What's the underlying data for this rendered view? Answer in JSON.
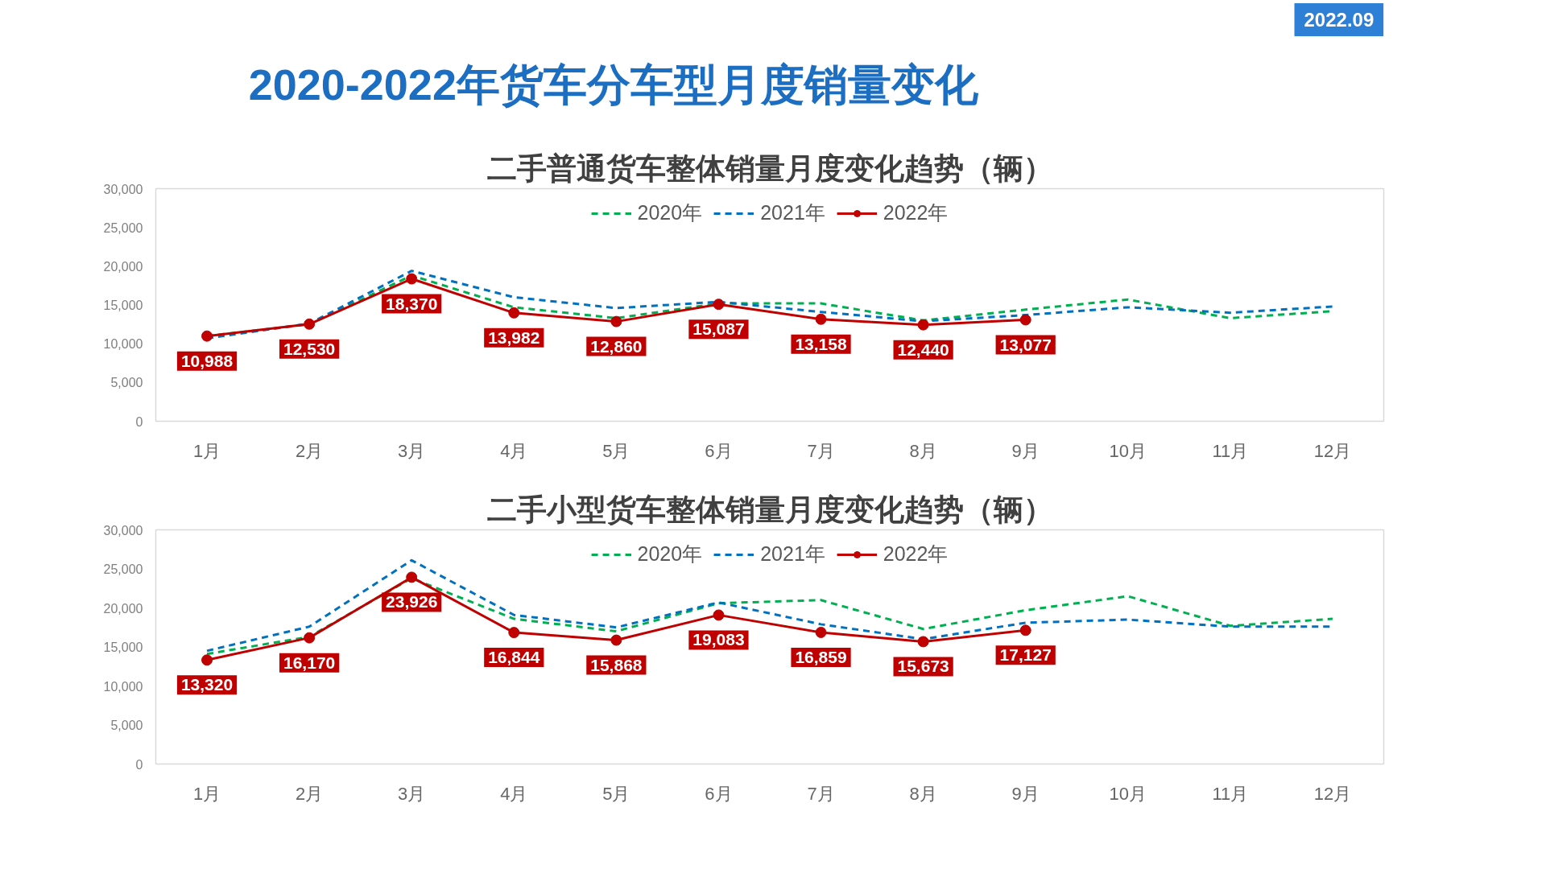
{
  "chart_data": [
    {
      "type": "line",
      "title": "二手普通货车整体销量月度变化趋势（辆）",
      "annotations": [
        "2020-2022年货车分车型月度销量变化",
        "2022.09"
      ],
      "categories": [
        "1月",
        "2月",
        "3月",
        "4月",
        "5月",
        "6月",
        "7月",
        "8月",
        "9月",
        "10月",
        "11月",
        "12月"
      ],
      "series": [
        {
          "name": "2020年",
          "color": "#00b050",
          "line_style": "dashed",
          "marker": "none",
          "values": [
            11000,
            12500,
            18800,
            14700,
            13300,
            15200,
            15200,
            13000,
            14400,
            15700,
            13300,
            14200
          ]
        },
        {
          "name": "2021年",
          "color": "#0070c0",
          "line_style": "dashed",
          "marker": "none",
          "values": [
            10700,
            12600,
            19400,
            16000,
            14600,
            15400,
            14100,
            12900,
            13700,
            14700,
            14000,
            14800
          ]
        },
        {
          "name": "2022年",
          "color": "#c00000",
          "line_style": "solid",
          "marker": "circle",
          "values": [
            10988,
            12530,
            18370,
            13982,
            12860,
            15087,
            13158,
            12440,
            13077,
            null,
            null,
            null
          ],
          "value_labels": [
            "10,988",
            "12,530",
            "18,370",
            "13,982",
            "12,860",
            "15,087",
            "13,158",
            "12,440",
            "13,077",
            null,
            null,
            null
          ]
        }
      ],
      "ylim": [
        0,
        30000
      ],
      "yticks": [
        {
          "value": 0,
          "label": "0"
        },
        {
          "value": 5000,
          "label": "5,000"
        },
        {
          "value": 10000,
          "label": "10,000"
        },
        {
          "value": 15000,
          "label": "15,000"
        },
        {
          "value": 20000,
          "label": "20,000"
        },
        {
          "value": 25000,
          "label": "25,000"
        },
        {
          "value": 30000,
          "label": "30,000"
        }
      ],
      "legend": "top"
    },
    {
      "type": "line",
      "title": "二手小型货车整体销量月度变化趋势（辆）",
      "categories": [
        "1月",
        "2月",
        "3月",
        "4月",
        "5月",
        "6月",
        "7月",
        "8月",
        "9月",
        "10月",
        "11月",
        "12月"
      ],
      "series": [
        {
          "name": "2020年",
          "color": "#00b050",
          "line_style": "dashed",
          "marker": "none",
          "values": [
            14100,
            16300,
            23800,
            18600,
            17000,
            20600,
            21000,
            17300,
            19700,
            21500,
            17700,
            18600
          ]
        },
        {
          "name": "2021年",
          "color": "#0070c0",
          "line_style": "dashed",
          "marker": "none",
          "values": [
            14500,
            17600,
            26100,
            19100,
            17500,
            20700,
            17900,
            16000,
            18100,
            18500,
            17600,
            17600
          ]
        },
        {
          "name": "2022年",
          "color": "#c00000",
          "line_style": "solid",
          "marker": "circle",
          "values": [
            13320,
            16170,
            23926,
            16844,
            15868,
            19083,
            16859,
            15673,
            17127,
            null,
            null,
            null
          ],
          "value_labels": [
            "13,320",
            "16,170",
            "23,926",
            "16,844",
            "15,868",
            "19,083",
            "16,859",
            "15,673",
            "17,127",
            null,
            null,
            null
          ]
        }
      ],
      "ylim": [
        0,
        30000
      ],
      "yticks": [
        {
          "value": 0,
          "label": "0"
        },
        {
          "value": 5000,
          "label": "5,000"
        },
        {
          "value": 10000,
          "label": "10,000"
        },
        {
          "value": 15000,
          "label": "15,000"
        },
        {
          "value": 20000,
          "label": "20,000"
        },
        {
          "value": 25000,
          "label": "25,000"
        },
        {
          "value": 30000,
          "label": "30,000"
        }
      ],
      "legend": "top"
    }
  ]
}
